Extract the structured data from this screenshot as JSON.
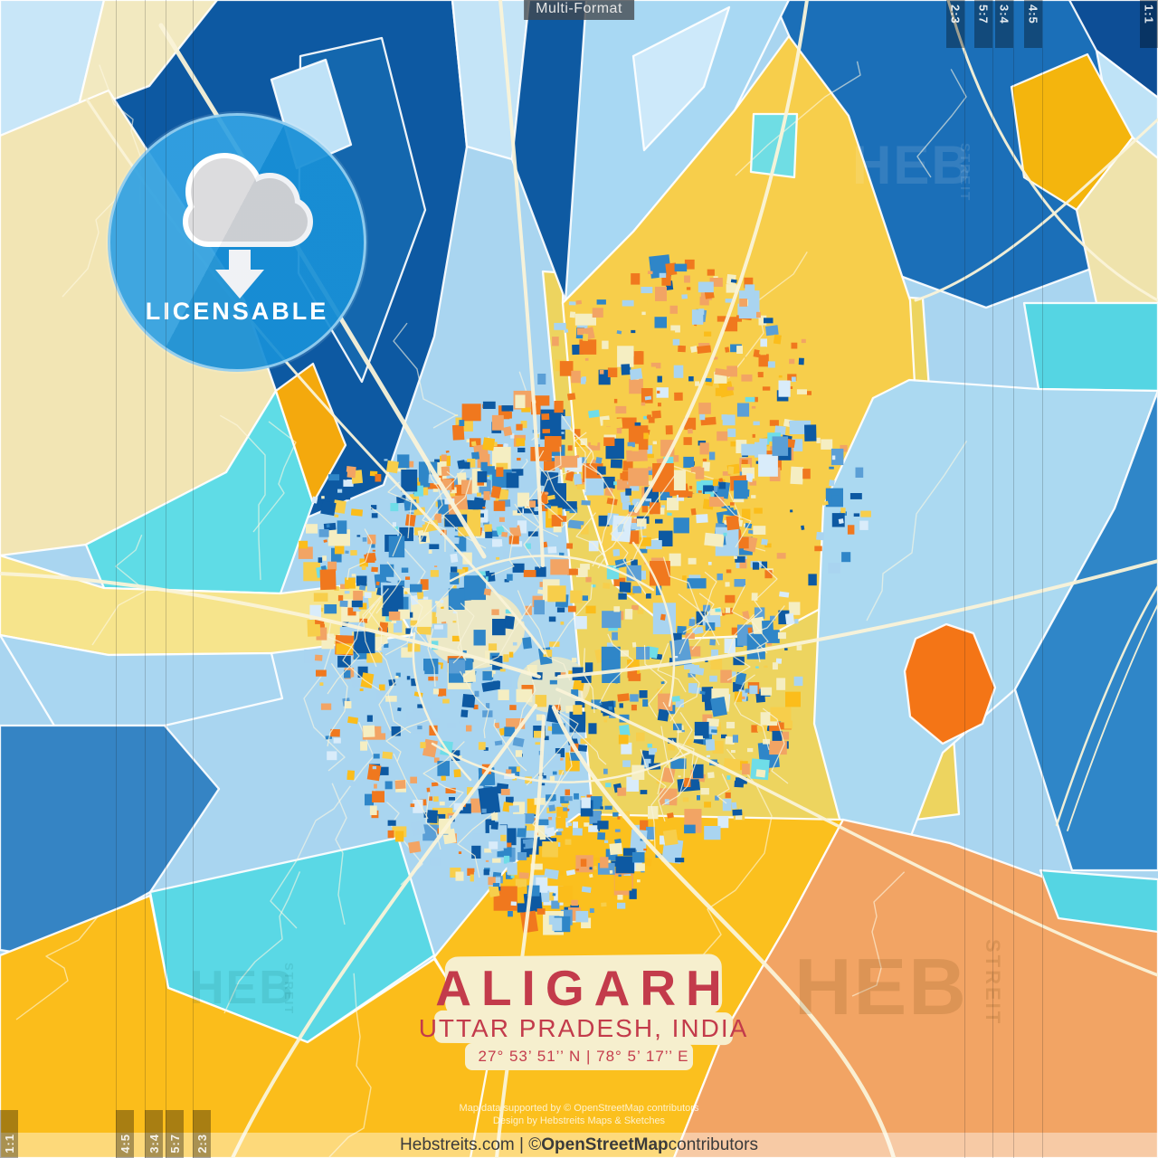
{
  "chip": {
    "label": "Multi-Format"
  },
  "badge": {
    "label": "LICENSABLE"
  },
  "ratios": {
    "top_right": [
      "2:3",
      "5:7",
      "3:4",
      "4:5",
      "1:1"
    ],
    "bottom_left": [
      "1:1",
      "4:5",
      "3:4",
      "5:7",
      "2:3"
    ]
  },
  "title": {
    "city": "ALIGARH",
    "region": "UTTAR PRADESH, INDIA",
    "coordinates": "27° 53’ 51’’ N | 78° 5’ 17’’ E"
  },
  "attribution": {
    "line1": "Map data supported by © OpenStreetMap contributors",
    "line2": "Design by Hebstreits Maps & Sketches"
  },
  "footer": {
    "prefix": "Hebstreits.com | © ",
    "brand": "OpenStreetMap",
    "suffix": " contributors"
  },
  "watermark": {
    "brand": "HEB",
    "sub": "STREIT"
  },
  "map": {
    "accent_red": "#C33B4B",
    "badge_blue": "#1A97DF",
    "palette": {
      "base": "#A9D5F0",
      "deep_navy": "#0D59A2",
      "navy2": "#1467AE",
      "mid_blue": "#2F86C8",
      "steel_blue": "#5B9FD6",
      "light_blue": "#A9D4F0",
      "pale_blue": "#D9ECFA",
      "cyan": "#5FDCE6",
      "cream": "#F5EEC2",
      "pale_yellow": "#F6E48C",
      "khaki": "#EDD45F",
      "yellow": "#F7CE4B",
      "gold": "#FBBD1B",
      "orange": "#F0781E",
      "salmon": "#F2A464",
      "road": "#FAF3D8"
    }
  }
}
